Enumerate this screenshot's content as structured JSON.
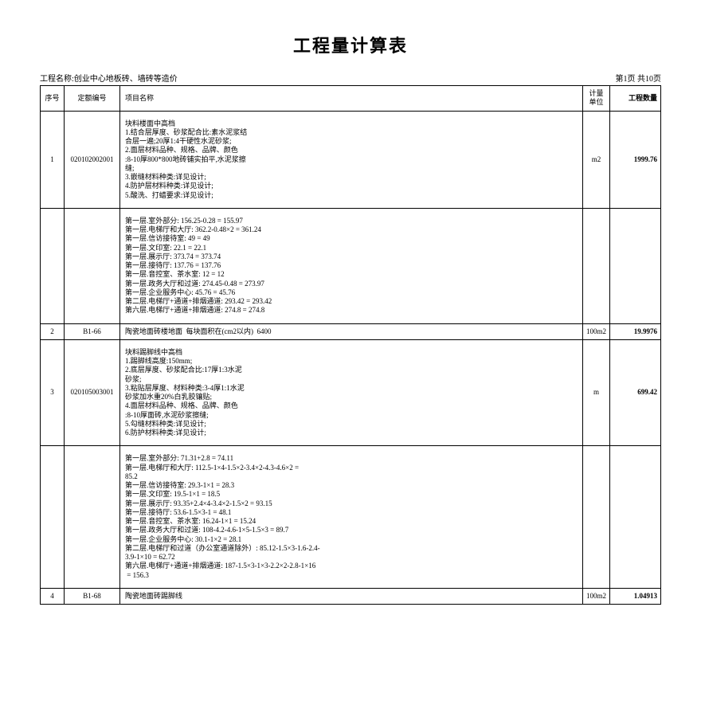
{
  "title": "工程量计算表",
  "project_label": "工程名称:创业中心地板砖、墙砖等造价",
  "page_label": "第1页 共10页",
  "columns": {
    "seq": "序号",
    "code": "定额编号",
    "name": "项目名称",
    "unit": "计量单位",
    "qty": "工程数量"
  },
  "rows": [
    {
      "seq": "1",
      "code": "020102002001",
      "name": "块料楼面中高档\n1.结合层厚度、砂浆配合比:素水泥浆结\n合层一遍;20厚1:4干硬性水泥砂浆;\n2.面层材料品种、规格、品牌、颜色\n:8-10厚800*800地砖铺实拍平,水泥浆擦\n缝;\n3.嵌缝材料种类:详见设计;\n4.防护层材料种类:详见设计;\n5.酸洗、打蜡要求:详见设计;",
      "unit": "m2",
      "qty": "1999.76"
    },
    {
      "calc": "第一层.室外部分: 156.25-0.28 = 155.97\n第一层.电梯厅和大厅: 362.2-0.48×2 = 361.24\n第一层.信访接待室: 49 = 49\n第一层.文印室: 22.1 = 22.1\n第一层.展示厅: 373.74 = 373.74\n第一层.接待厅: 137.76 = 137.76\n第一层.音控室、茶水室: 12 = 12\n第一层.政务大厅和过道: 274.45-0.48 = 273.97\n第一层.企业服务中心: 45.76 = 45.76\n第二层.电梯厅+通道+排烟通道: 293.42 = 293.42\n第六层.电梯厅+通道+排烟通道: 274.8 = 274.8"
    },
    {
      "seq": "2",
      "code": "B1-66",
      "name": "陶瓷地面砖楼地面  每块面积在(cm2以内)  6400",
      "unit": "100m2",
      "qty": "19.9976"
    },
    {
      "seq": "3",
      "code": "020105003001",
      "name": "块料踢脚线中高档\n1.踢脚线高度:150mm;\n2.底层厚度、砂浆配合比:17厚1:3水泥\n砂浆;\n3.粘贴层厚度、材料种类:3-4厚1:1水泥\n砂浆加水重20%白乳胶镶贴;\n4.面层材料品种、规格、品牌、颜色\n:8-10厚面砖,水泥砂浆擦缝;\n5.勾缝材料种类:详见设计;\n6.防护材料种类:详见设计;",
      "unit": "m",
      "qty": "699.42"
    },
    {
      "calc": "第一层.室外部分: 71.31+2.8 = 74.11\n第一层.电梯厅和大厅: 112.5-1×4-1.5×2-3.4×2-4.3-4.6×2 = \n85.2\n第一层.信访接待室: 29.3-1×1 = 28.3\n第一层.文印室: 19.5-1×1 = 18.5\n第一层.展示厅: 93.35+2.4×4-3.4×2-1.5×2 = 93.15\n第一层.接待厅: 53.6-1.5×3-1 = 48.1\n第一层.音控室、茶水室: 16.24-1×1 = 15.24\n第一层.政务大厅和过道: 108-4.2-4.6-1×5-1.5×3 = 89.7\n第一层.企业服务中心: 30.1-1×2 = 28.1\n第二层.电梯厅和过道（办公室通道除外）: 85.12-1.5×3-1.6-2.4-\n3.9-1×10 = 62.72\n第六层.电梯厅+通道+排烟通道: 187-1.5×3-1×3-2.2×2-2.8-1×16\n = 156.3"
    },
    {
      "seq": "4",
      "code": "B1-68",
      "name": "陶瓷地面砖踢脚线",
      "unit": "100m2",
      "qty": "1.04913"
    }
  ]
}
